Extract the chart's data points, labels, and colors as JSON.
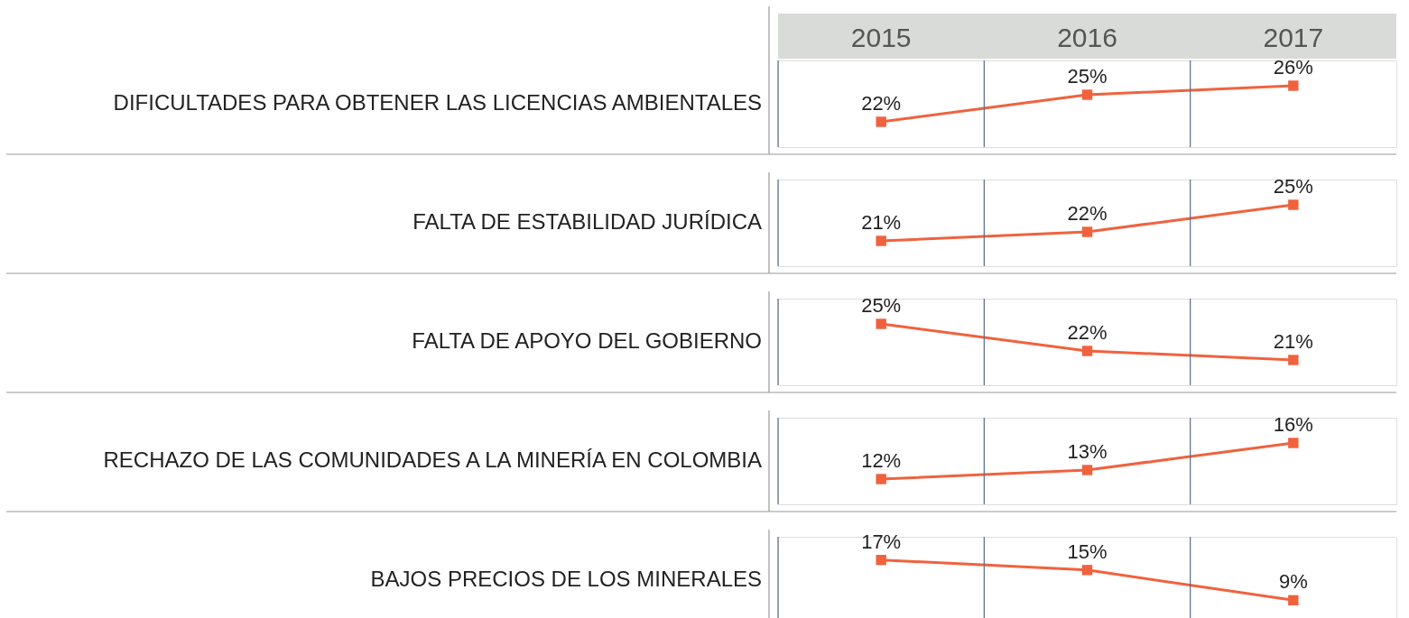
{
  "chart_data": [
    {
      "type": "line",
      "title": "DIFICULTADES PARA OBTENER LAS LICENCIAS AMBIENTALES",
      "categories": [
        "2015",
        "2016",
        "2017"
      ],
      "values": [
        22,
        25,
        26
      ],
      "value_labels": [
        "22%",
        "25%",
        "26%"
      ],
      "color": "#f0623e",
      "marker": "square",
      "grid": "x",
      "tick_labels": "x"
    },
    {
      "type": "line",
      "title": "FALTA DE ESTABILIDAD JURÍDICA",
      "categories": [
        "2015",
        "2016",
        "2017"
      ],
      "values": [
        21,
        22,
        25
      ],
      "value_labels": [
        "21%",
        "22%",
        "25%"
      ],
      "color": "#f0623e",
      "marker": "square",
      "grid": "x",
      "tick_labels": false
    },
    {
      "type": "line",
      "title": "FALTA DE APOYO DEL GOBIERNO",
      "categories": [
        "2015",
        "2016",
        "2017"
      ],
      "values": [
        25,
        22,
        21
      ],
      "value_labels": [
        "25%",
        "22%",
        "21%"
      ],
      "color": "#f0623e",
      "marker": "square",
      "grid": "x",
      "tick_labels": false
    },
    {
      "type": "line",
      "title": "RECHAZO DE LAS COMUNIDADES A LA MINERÍA EN COLOMBIA",
      "categories": [
        "2015",
        "2016",
        "2017"
      ],
      "values": [
        12,
        13,
        16
      ],
      "value_labels": [
        "12%",
        "13%",
        "16%"
      ],
      "color": "#f0623e",
      "marker": "square",
      "grid": "x",
      "tick_labels": false
    },
    {
      "type": "line",
      "title": "BAJOS PRECIOS DE LOS MINERALES",
      "categories": [
        "2015",
        "2016",
        "2017"
      ],
      "values": [
        17,
        15,
        9
      ],
      "value_labels": [
        "17%",
        "15%",
        "9%"
      ],
      "color": "#f0623e",
      "marker": "square",
      "grid": "x",
      "tick_labels": false
    }
  ]
}
